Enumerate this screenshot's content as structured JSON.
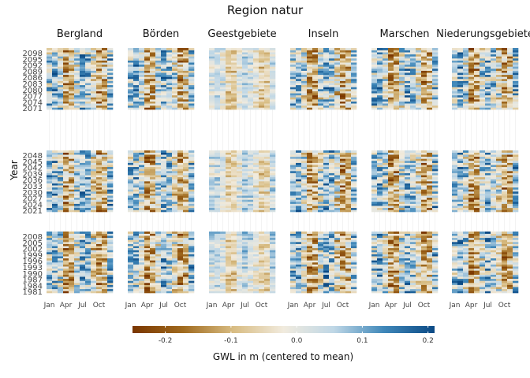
{
  "chart_data": {
    "type": "heatmap",
    "title": "Region natur",
    "ylabel": "Year",
    "facets": [
      "Bergland",
      "Börden",
      "Geestgebiete",
      "Inseln",
      "Marschen",
      "Niederungsgebiete"
    ],
    "x_ticks": [
      "Jan",
      "Apr",
      "Jul",
      "Oct"
    ],
    "months": 12,
    "periods": [
      {
        "start": 2071,
        "end": 2100,
        "tick_labels": [
          "2098",
          "2095",
          "2092",
          "2089",
          "2086",
          "2083",
          "2080",
          "2077",
          "2074",
          "2071"
        ]
      },
      {
        "start": 2021,
        "end": 2050,
        "tick_labels": [
          "2048",
          "2045",
          "2042",
          "2039",
          "2036",
          "2033",
          "2030",
          "2027",
          "2024",
          "2021"
        ]
      },
      {
        "start": 1981,
        "end": 2010,
        "tick_labels": [
          "2008",
          "2005",
          "2002",
          "1999",
          "1996",
          "1993",
          "1990",
          "1987",
          "1984",
          "1981"
        ]
      }
    ],
    "legend": {
      "title": "GWL in m (centered to mean)",
      "ticks": [
        "-0.2",
        "-0.1",
        "0.0",
        "0.1",
        "0.2"
      ],
      "tick_values": [
        -0.2,
        -0.1,
        0.0,
        0.1,
        0.2
      ],
      "range": [
        -0.25,
        0.21
      ],
      "placement": "bottom"
    },
    "colors": [
      "#7a3600",
      "#a06a1e",
      "#d8bc82",
      "#f1ebde",
      "#bfd7e6",
      "#3f87b9",
      "#0b4a85"
    ],
    "monthly_pattern": [
      0.05,
      0.07,
      0.02,
      -0.12,
      -0.1,
      0.02,
      0.08,
      0.05,
      -0.02,
      -0.11,
      -0.08,
      0.06
    ]
  }
}
